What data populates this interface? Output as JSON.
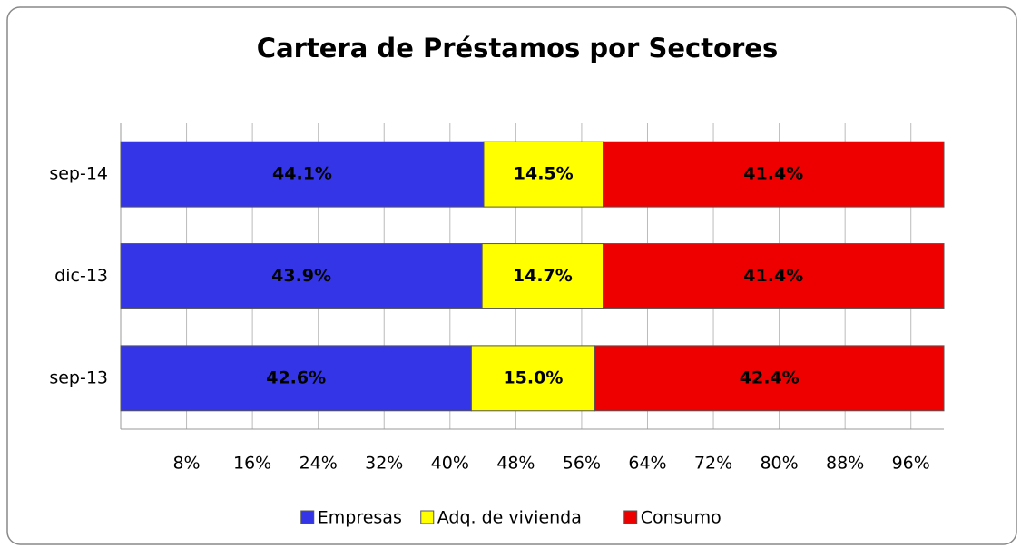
{
  "chart_data": {
    "type": "stacked_barh",
    "title": "Cartera de Préstamos por Sectores",
    "categories": [
      "sep-14",
      "dic-13",
      "sep-13"
    ],
    "series": [
      {
        "name": "Empresas",
        "color": "#3535e8",
        "values": [
          44.1,
          43.9,
          42.6
        ],
        "value_labels": [
          "44.1%",
          "43.9%",
          "42.6%"
        ]
      },
      {
        "name": "Adq. de vivienda",
        "color": "#ffff00",
        "values": [
          14.5,
          14.7,
          15.0
        ],
        "value_labels": [
          "14.5%",
          "14.7%",
          "15.0%"
        ]
      },
      {
        "name": "Consumo",
        "color": "#ee0000",
        "values": [
          41.4,
          41.4,
          42.4
        ],
        "value_labels": [
          "41.4%",
          "41.4%",
          "42.4%"
        ]
      }
    ],
    "xlim": [
      0,
      100
    ],
    "xticks": [
      {
        "value": 8,
        "label": "8%"
      },
      {
        "value": 16,
        "label": "16%"
      },
      {
        "value": 24,
        "label": "24%"
      },
      {
        "value": 32,
        "label": "32%"
      },
      {
        "value": 40,
        "label": "40%"
      },
      {
        "value": 48,
        "label": "48%"
      },
      {
        "value": 56,
        "label": "56%"
      },
      {
        "value": 64,
        "label": "64%"
      },
      {
        "value": 72,
        "label": "72%"
      },
      {
        "value": 80,
        "label": "80%"
      },
      {
        "value": 88,
        "label": "88%"
      },
      {
        "value": 96,
        "label": "96%"
      }
    ],
    "grid": true,
    "legend": "bottom"
  }
}
